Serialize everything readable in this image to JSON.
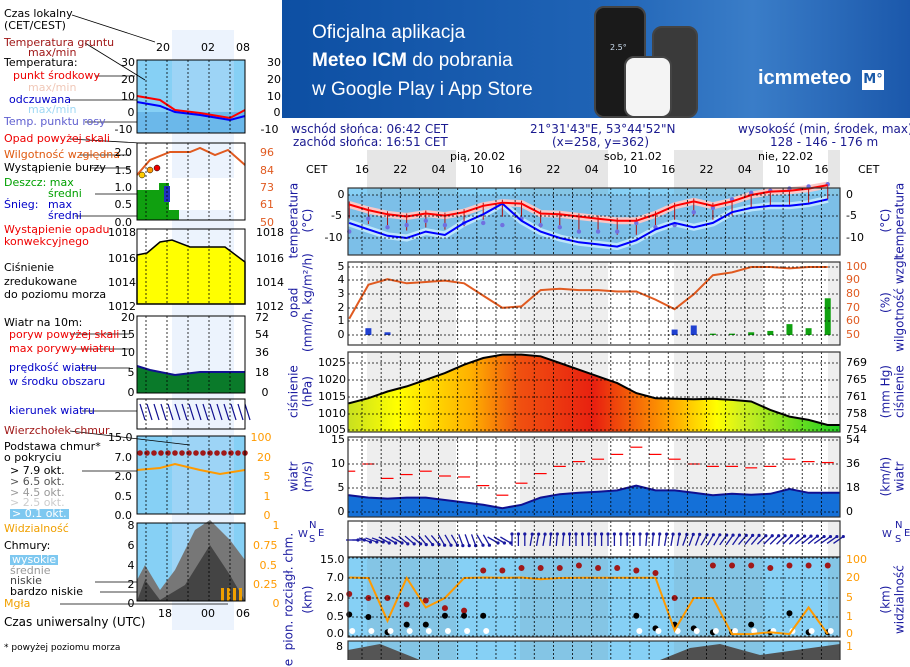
{
  "banner": {
    "line1": "Oficjalna aplikacja",
    "line2_bold": "Meteo ICM",
    "line2_rest": " do pobrania",
    "line3": "w Google Play i App Store",
    "logo": "icmmeteo",
    "logo_badge": "M°",
    "phone_temp": "2.5°"
  },
  "legend": {
    "local_time": "Czas lokalny",
    "local_time_zone": "(CET/CEST)",
    "ground_temp": "Temperatura gruntu",
    "ground_temp_mm": "max/min",
    "temperature": "Temperatura:",
    "mid_point": "punkt środkowy",
    "maxmin1": "max/min",
    "feels_like": "odczuwana",
    "maxmin2": "max/min",
    "dew_point": "Temp. punktu rosy",
    "precip_over": "Opad powyżej skali",
    "humidity": "Wilgotność względna",
    "storm": "Wystąpienie burzy",
    "rain_max": "Deszcz: max",
    "rain_avg": "średni",
    "snow": "Śnieg:",
    "snow_max": "max",
    "snow_avg": "średni",
    "convective1": "Wystąpienie opadu",
    "convective2": "konwekcyjnego",
    "pressure1": "Ciśnienie",
    "pressure2": "zredukowane",
    "pressure3": "do poziomu morza",
    "wind10": "Wiatr na 10m:",
    "gust_over": "poryw powyżej skali",
    "gust_max": "max porywy wiatru",
    "wind_speed1": "prędkość wiatru",
    "wind_speed2": "w środku obszaru",
    "wind_dir": "kierunek wiatru",
    "cloud_top": "Wierzchołek chmur",
    "cloud_base1": "Podstawa chmur*",
    "cloud_base2": "o pokryciu",
    "okt79": "> 7.9 okt.",
    "okt65": "> 6.5 okt.",
    "okt45": "> 4.5 okt.",
    "okt25": "> 2.5 okt.",
    "okt01": "> 0.1 okt.",
    "visibility": "Widzialność",
    "clouds": "Chmury:",
    "high": "wysokie",
    "medium": "średnie",
    "low": "niskie",
    "very_low": "bardzo niskie",
    "fog": "Mgła",
    "utc": "Czas uniwersalny (UTC)",
    "footnote": "* powyżej poziomu morza",
    "top_ticks": [
      "20",
      "02",
      "08"
    ],
    "bottom_ticks": [
      "18",
      "00",
      "06"
    ],
    "temp_ticks": [
      "30",
      "20",
      "10",
      "0",
      "-10"
    ],
    "precip_ticks": [
      "2.0",
      "1.5",
      "1.0",
      "0.5",
      "0.0"
    ],
    "hum_ticks": [
      "96",
      "84",
      "73",
      "61",
      "50"
    ],
    "press_ticks": [
      "1018",
      "1016",
      "1014",
      "1012"
    ],
    "wind_ticks_l": [
      "20",
      "15",
      "10",
      "5",
      "0"
    ],
    "wind_ticks_r": [
      "72",
      "54",
      "36",
      "18",
      "0"
    ],
    "cb_ticks": [
      "15.0",
      "7.0",
      "2.0",
      "0.5",
      "0.0"
    ],
    "vis_ticks": [
      "100",
      "20",
      "5",
      "1",
      "0"
    ],
    "cl_ticks": [
      "8",
      "6",
      "4",
      "2",
      "0"
    ],
    "cl_ticks_r": [
      "1",
      "0.75",
      "0.5",
      "0.25",
      "0"
    ]
  },
  "header": {
    "sunrise": "wschód słońca: 06:42 CET",
    "sunset": "zachód słońca: 16:51 CET",
    "coords": "21°31'43\"E, 53°44'52\"N",
    "grid": "(x=258,  y=362)",
    "elev_label": "wysokość (min, środek, max)",
    "elev": "128 - 146 - 176 m"
  },
  "time_axis": {
    "zone": "CET",
    "hours": [
      "16",
      "22",
      "04",
      "10",
      "16",
      "22",
      "04",
      "10",
      "16",
      "22",
      "04",
      "10",
      "16"
    ],
    "days": [
      "pią, 20.02",
      "sob, 21.02",
      "nie, 22.02"
    ]
  },
  "axes": {
    "temp": {
      "label": "temperatura",
      "unit": "(°C)",
      "ticks": [
        "0",
        "-5",
        "-10"
      ]
    },
    "precip": {
      "label": "opad",
      "unit": "(mm/h, kg/m²/h)",
      "ticks": [
        "5",
        "4",
        "3",
        "2",
        "1",
        "0"
      ],
      "right_label": "wilgotność wzgl.",
      "right_unit": "(%)",
      "right_ticks": [
        "100",
        "90",
        "80",
        "70",
        "60",
        "50"
      ]
    },
    "press": {
      "label": "ciśnienie",
      "unit": "(hPa)",
      "ticks": [
        "1025",
        "1020",
        "1015",
        "1010",
        "1005"
      ],
      "right_label": "ciśnienie",
      "right_unit": "(mm Hg)",
      "right_ticks": [
        "769",
        "765",
        "761",
        "758",
        "754"
      ]
    },
    "wind": {
      "label": "wiatr",
      "unit": "(m/s)",
      "ticks": [
        "15",
        "10",
        "5",
        "0"
      ],
      "right_label": "wiatr",
      "right_unit": "(km/h)",
      "right_ticks": [
        "54",
        "36",
        "18",
        "0"
      ]
    },
    "dir": {
      "n": "N",
      "w": "W",
      "s": "S",
      "e": "E"
    },
    "cloud": {
      "label": "pion. rozciągł. chm.",
      "unit": "(km)",
      "ticks": [
        "15.0",
        "7.0",
        "2.0",
        "0.5",
        "0.0"
      ],
      "right_label": "widzialność",
      "right_unit": "(km)",
      "right_ticks": [
        "100",
        "20",
        "5",
        "1",
        "0"
      ]
    },
    "clouds": {
      "tick": "8",
      "right_tick": "1",
      "label": "e"
    }
  },
  "chart_data": {
    "type": "line",
    "x_label": "CET",
    "times": [
      "19.02 14:00",
      "19.02 17:00",
      "19.02 20:00",
      "19.02 23:00",
      "20.02 02:00",
      "20.02 05:00",
      "20.02 08:00",
      "20.02 11:00",
      "20.02 14:00",
      "20.02 17:00",
      "20.02 20:00",
      "20.02 23:00",
      "21.02 02:00",
      "21.02 05:00",
      "21.02 08:00",
      "21.02 11:00",
      "21.02 14:00",
      "21.02 17:00",
      "21.02 20:00",
      "21.02 23:00",
      "22.02 02:00",
      "22.02 05:00",
      "22.02 08:00",
      "22.02 11:00",
      "22.02 14:00",
      "22.02 17:00"
    ],
    "colors": {
      "temp": "#ff0000",
      "feels": "#0000ff",
      "dew": "#7070e0",
      "humidity": "#e05a20",
      "pressure_line": "#000000",
      "wind": "#101090",
      "gust": "#ff0000",
      "visibility": "#ff9a00",
      "cloud_top": "#a01818",
      "base": "#000000"
    },
    "temperature_c": [
      -2.2,
      -3.5,
      -4.5,
      -5,
      -4.3,
      -4.8,
      -4,
      -2.5,
      -1.8,
      -2,
      -4.3,
      -4.5,
      -5,
      -5.5,
      -6,
      -6,
      -4.5,
      -2.5,
      -1.5,
      -2.5,
      -1.5,
      0,
      0.8,
      1,
      1.5,
      2.3
    ],
    "feels_like_c": [
      -6.5,
      -8,
      -9.5,
      -10,
      -8.5,
      -9.3,
      -6.5,
      -4.5,
      -2,
      -6,
      -8.5,
      -10,
      -11,
      -11.5,
      -12,
      -10.5,
      -8,
      -6.5,
      -7.5,
      -6.5,
      -4,
      -3,
      -2.5,
      -2.5,
      -2,
      -1
    ],
    "dew_point_c": [
      -8.5,
      -5.5,
      -7.5,
      -7,
      -6,
      -7,
      -6.5,
      -6.5,
      -7,
      -5.5,
      -7,
      -7.5,
      -8.5,
      -8.5,
      -8.5,
      -6.5,
      -7.5,
      -7,
      -4,
      -3,
      -1,
      0.5,
      1,
      1.5,
      2,
      2.5
    ],
    "humidity_pct": [
      62,
      87,
      91,
      88,
      89,
      90,
      88,
      79,
      70,
      71,
      83,
      84,
      83,
      83,
      82,
      82,
      76,
      69,
      80,
      94,
      96,
      100,
      100,
      99,
      100,
      100
    ],
    "precip_mm_h": [
      0,
      0.5,
      0.2,
      0,
      0,
      0,
      0,
      0,
      0,
      0,
      0,
      0,
      0,
      0,
      0,
      0,
      0,
      0.4,
      0.7,
      0.1,
      0.1,
      0.2,
      0.3,
      0.8,
      0.5,
      2.7
    ],
    "pressure_hpa": [
      1013,
      1014.5,
      1016.5,
      1018,
      1020,
      1022,
      1024.5,
      1026.5,
      1027.5,
      1027.5,
      1027,
      1025,
      1023,
      1021,
      1019,
      1016,
      1014.5,
      1014.3,
      1014.2,
      1014.3,
      1014,
      1013.5,
      1011,
      1009,
      1008,
      1006.5
    ],
    "wind_ms": [
      3.5,
      3,
      2.8,
      3,
      3,
      2.5,
      2,
      1.5,
      0.8,
      1.5,
      3,
      3.7,
      4,
      4.2,
      4.5,
      5.5,
      4.5,
      4.5,
      4,
      3.5,
      3.8,
      3.6,
      3.8,
      4.8,
      4,
      4
    ],
    "gust_ms": [
      8.5,
      10,
      7,
      7.8,
      8.5,
      7.5,
      7.3,
      5.5,
      3.5,
      6,
      8,
      9.5,
      10.5,
      11,
      12,
      13.5,
      12,
      11,
      10,
      9.5,
      9.5,
      9.2,
      9.5,
      11,
      10.5,
      10.3
    ],
    "wind_dir_deg": [
      270,
      290,
      300,
      310,
      320,
      330,
      340,
      330,
      300,
      180,
      190,
      185,
      180,
      180,
      180,
      180,
      185,
      190,
      200,
      210,
      215,
      220,
      225,
      225,
      230,
      235
    ],
    "visibility_km": [
      22,
      20,
      0.8,
      20,
      3,
      5,
      20,
      22,
      21,
      22,
      19,
      20,
      21,
      21,
      21,
      21,
      21,
      0.3,
      5,
      5,
      0.1,
      0.1,
      0.2,
      0.1,
      3,
      0.1
    ],
    "cloud_top_km": [
      3,
      2,
      2,
      1.5,
      1.8,
      1.2,
      1,
      10,
      10,
      11,
      11,
      11,
      12,
      11,
      11,
      10,
      9,
      2,
      null,
      12,
      12,
      12,
      11,
      12,
      12,
      12
    ],
    "cloud_base_km": [
      0.7,
      0.5,
      0.1,
      0.3,
      0.3,
      0.6,
      0.6,
      0.6,
      null,
      null,
      null,
      null,
      null,
      null,
      null,
      0.6,
      0.2,
      0.3,
      0.2,
      0.1,
      0.1,
      0.3,
      0.1,
      0.8,
      0.1,
      0.1
    ]
  }
}
